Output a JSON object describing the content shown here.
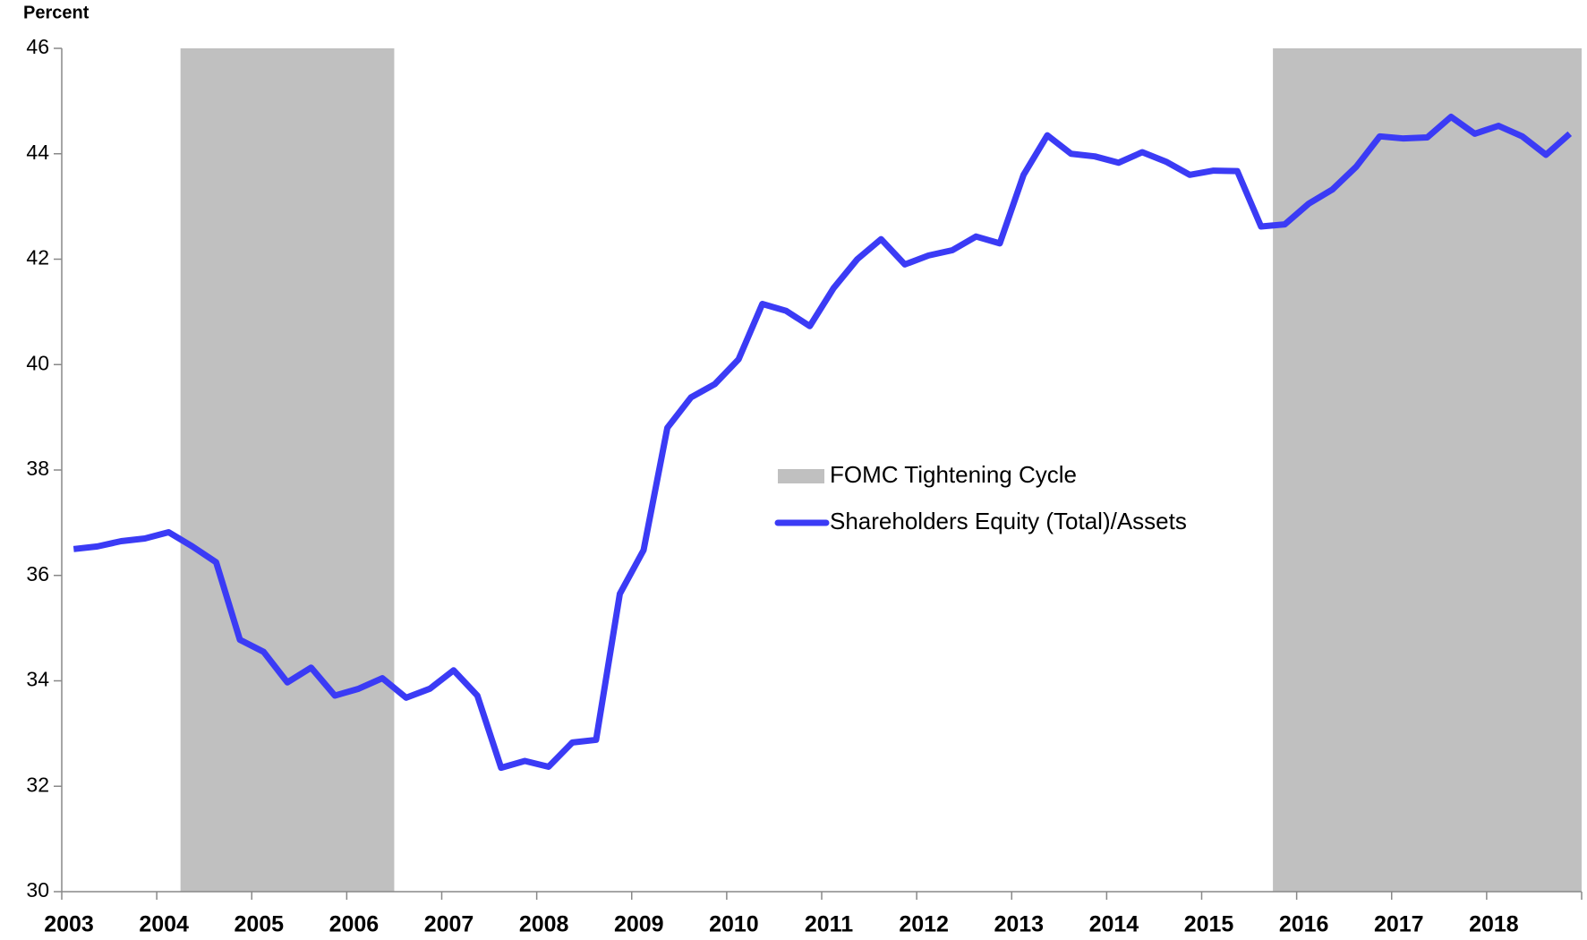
{
  "chart_data": {
    "type": "line",
    "y_axis_label": "Percent",
    "x": [
      2003.125,
      2003.375,
      2003.625,
      2003.875,
      2004.125,
      2004.375,
      2004.625,
      2004.875,
      2005.125,
      2005.375,
      2005.625,
      2005.875,
      2006.125,
      2006.375,
      2006.625,
      2006.875,
      2007.125,
      2007.375,
      2007.625,
      2007.875,
      2008.125,
      2008.375,
      2008.625,
      2008.875,
      2009.125,
      2009.375,
      2009.625,
      2009.875,
      2010.125,
      2010.375,
      2010.625,
      2010.875,
      2011.125,
      2011.375,
      2011.625,
      2011.875,
      2012.125,
      2012.375,
      2012.625,
      2012.875,
      2013.125,
      2013.375,
      2013.625,
      2013.875,
      2014.125,
      2014.375,
      2014.625,
      2014.875,
      2015.125,
      2015.375,
      2015.625,
      2015.875,
      2016.125,
      2016.375,
      2016.625,
      2016.875,
      2017.125,
      2017.375,
      2017.625,
      2017.875,
      2018.125,
      2018.375,
      2018.625,
      2018.875
    ],
    "series": [
      {
        "name": "Shareholders Equity (Total)/Assets",
        "color": "#3b3bf5",
        "values": [
          36.5,
          36.55,
          36.65,
          36.7,
          36.82,
          36.55,
          36.25,
          34.78,
          34.55,
          33.97,
          34.25,
          33.72,
          33.85,
          34.05,
          33.68,
          33.85,
          34.2,
          33.72,
          32.35,
          32.48,
          32.37,
          32.83,
          32.88,
          35.65,
          36.48,
          38.8,
          39.38,
          39.63,
          40.1,
          41.15,
          41.02,
          40.73,
          41.45,
          42.0,
          42.38,
          41.9,
          42.07,
          42.17,
          42.43,
          42.3,
          43.6,
          44.35,
          44.0,
          43.95,
          43.83,
          44.03,
          43.85,
          43.6,
          43.68,
          43.67,
          42.62,
          42.66,
          43.05,
          43.32,
          43.75,
          44.33,
          44.29,
          44.31,
          44.7,
          44.38,
          44.53,
          44.33,
          43.98,
          44.38
        ]
      }
    ],
    "shaded": {
      "name": "FOMC Tightening Cycle",
      "color": "#c0c0c0",
      "ranges": [
        [
          2004.25,
          2006.5
        ],
        [
          2015.75,
          2019
        ]
      ]
    },
    "xlim": [
      2003,
      2019
    ],
    "xticks": [
      2003,
      2004,
      2005,
      2006,
      2007,
      2008,
      2009,
      2010,
      2011,
      2012,
      2013,
      2014,
      2015,
      2016,
      2017,
      2018
    ],
    "ylim": [
      30,
      46
    ],
    "yticks": [
      30,
      32,
      34,
      36,
      38,
      40,
      42,
      44,
      46
    ],
    "grid": false
  }
}
